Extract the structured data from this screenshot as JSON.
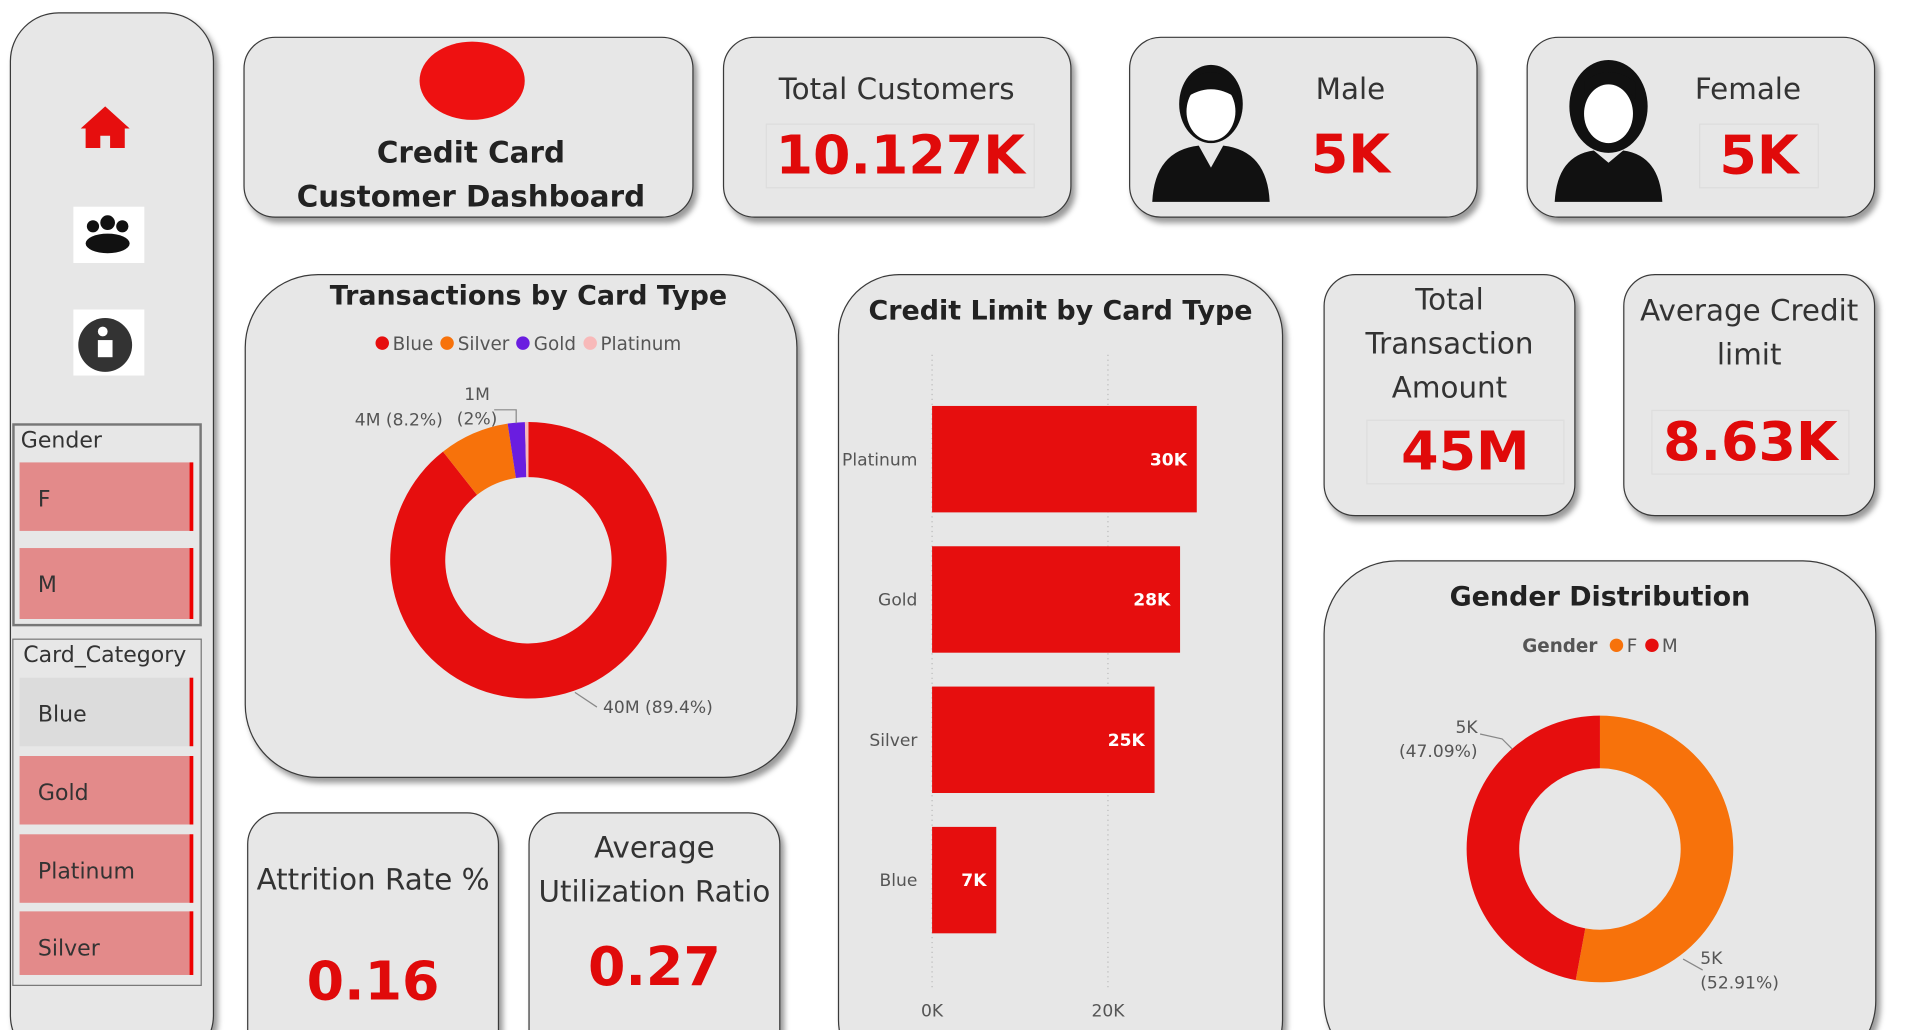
{
  "title": "Credit Card Customer Dashboard",
  "kpis": [
    {
      "label": "Total Customers",
      "value": "10.127K"
    },
    {
      "label": "Male",
      "value": "5K"
    },
    {
      "label": "Female",
      "value": "5K"
    },
    {
      "label": "Total Transaction Amount",
      "value": "45M"
    },
    {
      "label": "Average Credit limit",
      "value": "8.63K"
    },
    {
      "label": "Attrition Rate %",
      "value": "0.16"
    },
    {
      "label": "Average Utilization Ratio",
      "value": "0.27"
    }
  ],
  "slicers": [
    {
      "title": "Gender",
      "items": [
        "F",
        "M"
      ]
    },
    {
      "title": "Card_Category",
      "items": [
        "Blue",
        "Gold",
        "Platinum",
        "Silver"
      ]
    }
  ],
  "chart_data": [
    {
      "type": "donut",
      "title": "Transactions by Card Type",
      "categories": [
        "Blue",
        "Silver",
        "Gold",
        "Platinum"
      ],
      "values": [
        39.8,
        3.65,
        0.89,
        0.18
      ],
      "value_labels": [
        "40M (89.4%)",
        "4M (8.2%)",
        "1M (2%)",
        null
      ],
      "colors": [
        "#e60e0e",
        "#f7720b",
        "#6a1de0",
        "#f8b9b9"
      ]
    },
    {
      "type": "hbar",
      "title": "Credit Limit by Card Type",
      "categories": [
        "Platinum",
        "Gold",
        "Silver",
        "Blue"
      ],
      "values": [
        30.1,
        28.2,
        25.3,
        7.3
      ],
      "value_labels": [
        "30K",
        "28K",
        "25K",
        "7K"
      ],
      "color": "#e60e0e",
      "xlim": [
        0,
        37
      ],
      "xticks": [
        {
          "value": 0,
          "label": "0K"
        },
        {
          "value": 20,
          "label": "20K"
        }
      ],
      "grid": true
    },
    {
      "type": "donut",
      "title": "Gender Distribution",
      "legend_title": "Gender",
      "categories": [
        "F",
        "M"
      ],
      "values": [
        5358,
        4769
      ],
      "value_labels": [
        "5K (52.91%)",
        "5K (47.09%)"
      ],
      "colors": [
        "#f7720b",
        "#e60e0e"
      ]
    }
  ]
}
